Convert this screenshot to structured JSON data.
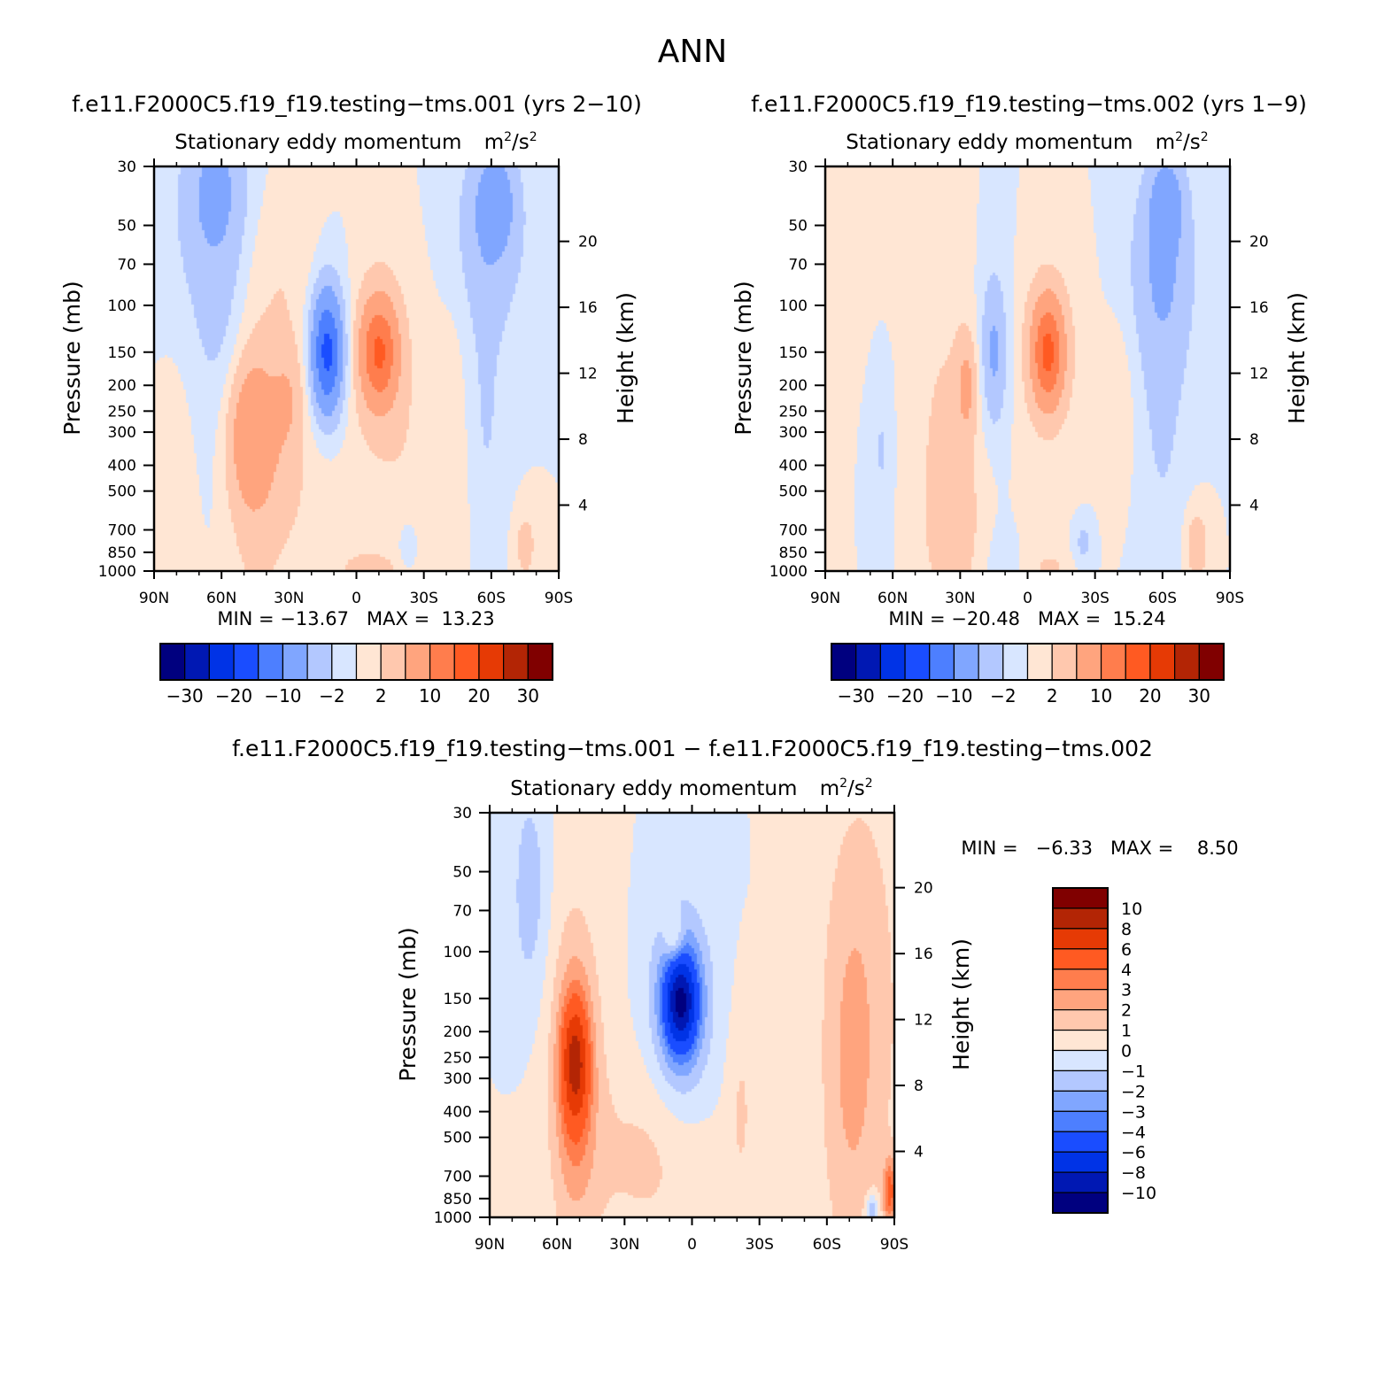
{
  "figure": {
    "season": "ANN"
  },
  "palettes": {
    "main": [
      "#00007f",
      "#0018b3",
      "#0033e6",
      "#1a4dff",
      "#4d7fff",
      "#80a6ff",
      "#b3c8ff",
      "#d8e6ff",
      "#ffe6d4",
      "#ffc8ae",
      "#ffa47e",
      "#ff7d4d",
      "#ff5a22",
      "#e63a05",
      "#b32505",
      "#800000"
    ],
    "diff": [
      "#00007f",
      "#0018b3",
      "#0033e6",
      "#1a4dff",
      "#4d7fff",
      "#80a6ff",
      "#b3c8ff",
      "#d8e6ff",
      "#ffe6d4",
      "#ffc8ae",
      "#ffa47e",
      "#ff7d4d",
      "#ff5a22",
      "#e63a05",
      "#b32505",
      "#800000"
    ]
  },
  "chart_data": [
    {
      "id": "case1",
      "type": "heatmap",
      "title": "f.e11.F2000C5.f19_f19.testing−tms.001 (yrs 2−10)",
      "subtitle": "Stationary eddy momentum",
      "units_base": "m",
      "units_mid": "/s",
      "units_exp": "2",
      "ylabel": "Pressure (mb)",
      "y2label": "Height (km)",
      "x_ticks": [
        "90N",
        "60N",
        "30N",
        "0",
        "30S",
        "60S",
        "90S"
      ],
      "y_ticks": [
        30,
        50,
        70,
        100,
        150,
        200,
        250,
        300,
        400,
        500,
        700,
        850,
        1000
      ],
      "y2_ticks": [
        4,
        8,
        12,
        16,
        20
      ],
      "ylim": [
        30,
        1000
      ],
      "xlim": [
        90,
        -90
      ],
      "stats_text": "MIN = −13.67   MAX =  13.23",
      "colorbar_labels": [
        "−30",
        "−20",
        "−10",
        "−2",
        "2",
        "10",
        "20",
        "30"
      ],
      "features": [
        {
          "lat": 62,
          "p": 35,
          "value": -4.5,
          "sx": 10,
          "sy": 0.45
        },
        {
          "lat": 58,
          "p": 160,
          "value": -2.5,
          "sx": 9,
          "sy": 0.9
        },
        {
          "lat": 68,
          "p": 60,
          "value": -2.0,
          "sx": 12,
          "sy": 0.7
        },
        {
          "lat": 30,
          "p": 70,
          "value": 1.6,
          "sx": 12,
          "sy": 0.5
        },
        {
          "lat": -60,
          "p": 50,
          "value": -4.5,
          "sx": 11,
          "sy": 0.55
        },
        {
          "lat": -62,
          "p": 40,
          "value": -5.5,
          "sx": 5,
          "sy": 0.25
        },
        {
          "lat": -57,
          "p": 250,
          "value": -2.2,
          "sx": 8,
          "sy": 1.0
        },
        {
          "lat": 13,
          "p": 150,
          "value": -13.5,
          "sx": 4.5,
          "sy": 0.35
        },
        {
          "lat": 13,
          "p": 150,
          "value": -4.0,
          "sx": 7,
          "sy": 0.55
        },
        {
          "lat": -10,
          "p": 150,
          "value": 12.5,
          "sx": 5.5,
          "sy": 0.3
        },
        {
          "lat": -10,
          "p": 150,
          "value": 3.5,
          "sx": 9,
          "sy": 0.6
        },
        {
          "lat": 47,
          "p": 300,
          "value": 7.5,
          "sx": 8,
          "sy": 0.45
        },
        {
          "lat": 47,
          "p": 350,
          "value": 2.5,
          "sx": 9,
          "sy": 1.1
        },
        {
          "lat": 30,
          "p": 220,
          "value": 3.5,
          "sx": 5,
          "sy": 0.35
        },
        {
          "lat": -5,
          "p": 1000,
          "value": 3.0,
          "sx": 8,
          "sy": 0.12
        },
        {
          "lat": -45,
          "p": 400,
          "value": 1.6,
          "sx": 5,
          "sy": 1.0
        },
        {
          "lat": -75,
          "p": 800,
          "value": 3.0,
          "sx": 4,
          "sy": 0.25
        },
        {
          "lat": 25,
          "p": 500,
          "value": 1.8,
          "sx": 16,
          "sy": 0.9
        },
        {
          "lat": -25,
          "p": 500,
          "value": 1.5,
          "sx": 12,
          "sy": 0.9
        },
        {
          "lat": -23,
          "p": 800,
          "value": -3.0,
          "sx": 3,
          "sy": 0.15
        },
        {
          "lat": 80,
          "p": 600,
          "value": 1.4,
          "sx": 6,
          "sy": 0.9
        }
      ]
    },
    {
      "id": "case2",
      "type": "heatmap",
      "title": "f.e11.F2000C5.f19_f19.testing−tms.002 (yrs 1−9)",
      "subtitle": "Stationary eddy momentum",
      "units_base": "m",
      "units_mid": "/s",
      "units_exp": "2",
      "ylabel": "Pressure (mb)",
      "y2label": "Height (km)",
      "x_ticks": [
        "90N",
        "60N",
        "30N",
        "0",
        "30S",
        "60S",
        "90S"
      ],
      "y_ticks": [
        30,
        50,
        70,
        100,
        150,
        200,
        250,
        300,
        400,
        500,
        700,
        850,
        1000
      ],
      "y2_ticks": [
        4,
        8,
        12,
        16,
        20
      ],
      "ylim": [
        30,
        1000
      ],
      "xlim": [
        90,
        -90
      ],
      "stats_text": "MIN = −20.48   MAX =  15.24",
      "colorbar_labels": [
        "−30",
        "−20",
        "−10",
        "−2",
        "2",
        "10",
        "20",
        "30"
      ],
      "features": [
        {
          "lat": 70,
          "p": 50,
          "value": 1.5,
          "sx": 18,
          "sy": 0.6
        },
        {
          "lat": -62,
          "p": 40,
          "value": -5.5,
          "sx": 5,
          "sy": 0.25
        },
        {
          "lat": -60,
          "p": 70,
          "value": -4.5,
          "sx": 10,
          "sy": 0.6
        },
        {
          "lat": -60,
          "p": 250,
          "value": -2.2,
          "sx": 9,
          "sy": 1.2
        },
        {
          "lat": 15,
          "p": 150,
          "value": -4.0,
          "sx": 3.5,
          "sy": 0.4
        },
        {
          "lat": 15,
          "p": 150,
          "value": -2.2,
          "sx": 6,
          "sy": 0.7
        },
        {
          "lat": -9,
          "p": 150,
          "value": 13.0,
          "sx": 4.5,
          "sy": 0.3
        },
        {
          "lat": -9,
          "p": 150,
          "value": 4.0,
          "sx": 9,
          "sy": 0.55
        },
        {
          "lat": 35,
          "p": 330,
          "value": 2.5,
          "sx": 12,
          "sy": 1.0
        },
        {
          "lat": 27,
          "p": 200,
          "value": 5.0,
          "sx": 3,
          "sy": 0.3
        },
        {
          "lat": 65,
          "p": 350,
          "value": -2.2,
          "sx": 3.5,
          "sy": 0.7
        },
        {
          "lat": 15,
          "p": 1000,
          "value": -1.5,
          "sx": 6,
          "sy": 0.4
        },
        {
          "lat": -10,
          "p": 1000,
          "value": 3.0,
          "sx": 5,
          "sy": 0.12
        },
        {
          "lat": -42,
          "p": 250,
          "value": 1.5,
          "sx": 5,
          "sy": 0.6
        },
        {
          "lat": -75,
          "p": 800,
          "value": 4.0,
          "sx": 4,
          "sy": 0.25
        },
        {
          "lat": -25,
          "p": 780,
          "value": -3.0,
          "sx": 2.5,
          "sy": 0.12
        },
        {
          "lat": 30,
          "p": 800,
          "value": 1.6,
          "sx": 12,
          "sy": 0.5
        }
      ]
    },
    {
      "id": "diff",
      "type": "heatmap",
      "title": "f.e11.F2000C5.f19_f19.testing−tms.001 − f.e11.F2000C5.f19_f19.testing−tms.002",
      "subtitle": "Stationary eddy momentum",
      "units_base": "m",
      "units_mid": "/s",
      "units_exp": "2",
      "ylabel": "Pressure (mb)",
      "y2label": "Height (km)",
      "x_ticks": [
        "90N",
        "60N",
        "30N",
        "0",
        "30S",
        "60S",
        "90S"
      ],
      "y_ticks": [
        30,
        50,
        70,
        100,
        150,
        200,
        250,
        300,
        400,
        500,
        700,
        850,
        1000
      ],
      "y2_ticks": [
        4,
        8,
        12,
        16,
        20
      ],
      "ylim": [
        30,
        1000
      ],
      "xlim": [
        90,
        -90
      ],
      "stats_text": "MIN =   −6.33   MAX =    8.50",
      "colorbar_labels": [
        "10",
        "8",
        "6",
        "4",
        "3",
        "2",
        "1",
        "0",
        "−1",
        "−2",
        "−3",
        "−4",
        "−6",
        "−8",
        "−10"
      ],
      "features": [
        {
          "lat": 72,
          "p": 60,
          "value": -1.6,
          "sx": 6,
          "sy": 0.7
        },
        {
          "lat": 5,
          "p": 155,
          "value": -6.3,
          "sx": 4.5,
          "sy": 0.25
        },
        {
          "lat": 5,
          "p": 155,
          "value": -3.2,
          "sx": 7.5,
          "sy": 0.45
        },
        {
          "lat": 5,
          "p": 160,
          "value": -1.6,
          "sx": 10,
          "sy": 0.65
        },
        {
          "lat": 52,
          "p": 260,
          "value": 5.5,
          "sx": 4,
          "sy": 0.35
        },
        {
          "lat": 52,
          "p": 300,
          "value": 2.5,
          "sx": 6,
          "sy": 0.7
        },
        {
          "lat": 52,
          "p": 300,
          "value": 1.4,
          "sx": 10,
          "sy": 1.3
        },
        {
          "lat": 8,
          "p": 90,
          "value": 2.5,
          "sx": 3,
          "sy": 0.15
        },
        {
          "lat": -70,
          "p": 300,
          "value": 1.4,
          "sx": 9,
          "sy": 1.3
        },
        {
          "lat": -78,
          "p": 150,
          "value": 1.2,
          "sx": 14,
          "sy": 1.6
        },
        {
          "lat": 20,
          "p": 600,
          "value": 1.2,
          "sx": 18,
          "sy": 0.6
        },
        {
          "lat": -22,
          "p": 400,
          "value": 1.1,
          "sx": 4,
          "sy": 0.6
        },
        {
          "lat": -88,
          "p": 800,
          "value": 4.0,
          "sx": 2,
          "sy": 0.2
        },
        {
          "lat": -80,
          "p": 950,
          "value": -3.0,
          "sx": 2,
          "sy": 0.1
        }
      ]
    }
  ]
}
